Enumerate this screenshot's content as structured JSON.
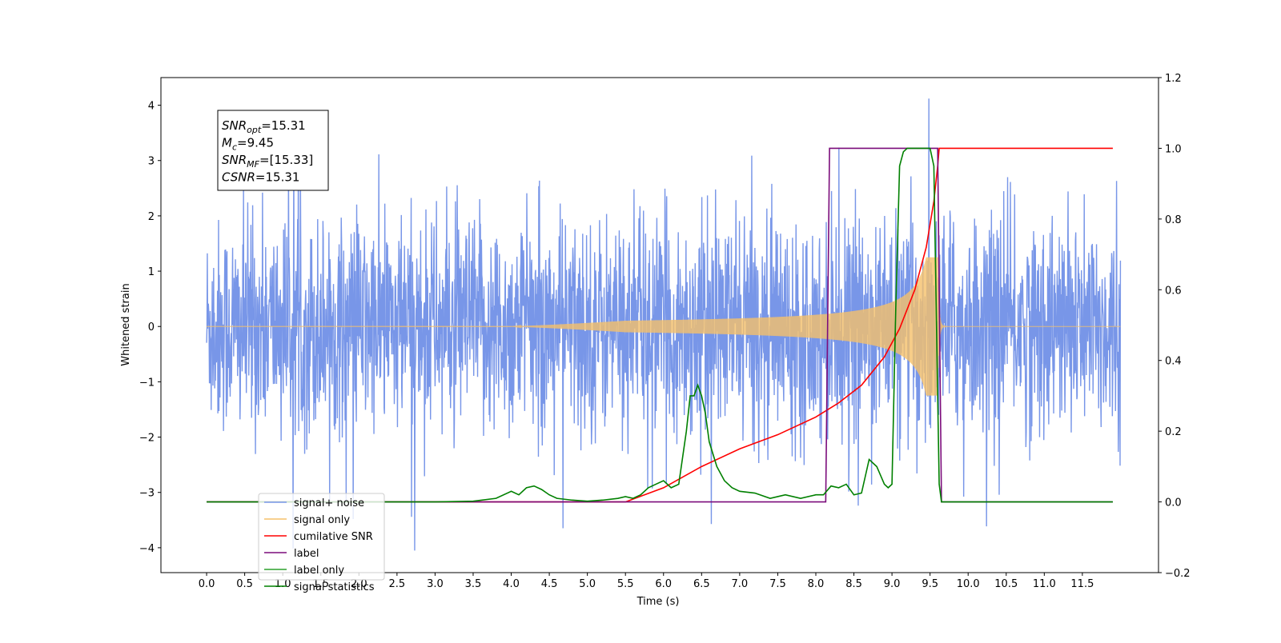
{
  "chart_data": {
    "type": "line",
    "xlabel": "Time (s)",
    "ylabel": "Whitened strain",
    "xlim": [
      -0.6,
      12.5
    ],
    "ylim_left": [
      -4.45,
      4.5
    ],
    "ylim_right": [
      -0.2,
      1.2
    ],
    "x_ticks": [
      "0.0",
      "0.5",
      "1.0",
      "1.5",
      "2.0",
      "2.5",
      "3.0",
      "3.5",
      "4.0",
      "4.5",
      "5.0",
      "5.5",
      "6.0",
      "6.5",
      "7.0",
      "7.5",
      "8.0",
      "8.5",
      "9.0",
      "9.5",
      "10.0",
      "10.5",
      "11.0",
      "11.5"
    ],
    "y_ticks_left": [
      "−4",
      "−3",
      "−2",
      "−1",
      "0",
      "1",
      "2",
      "3",
      "4"
    ],
    "y_ticks_right": [
      "−0.2",
      "0.0",
      "0.2",
      "0.4",
      "0.6",
      "0.8",
      "1.0",
      "1.2"
    ],
    "grid": false,
    "legend_position": "lower-left",
    "annotation": {
      "lines": [
        {
          "base": "SNR",
          "sub": "opt",
          "value": "=15.31"
        },
        {
          "base": "M",
          "sub": "c",
          "value": "=9.45"
        },
        {
          "base": "SNR",
          "sub": "MF",
          "value": "=[15.33]"
        },
        {
          "base": "CSNR",
          "sub": "",
          "value": "=15.31"
        }
      ]
    },
    "series": [
      {
        "name": "signal+ noise",
        "color": "#7896e8",
        "axis": "left",
        "kind": "noise",
        "x_range": [
          0.0,
          12.0
        ],
        "amplitude_range": [
          -4.05,
          4.12
        ],
        "typical_envelope": 2.0
      },
      {
        "name": "signal only",
        "color": "#f5c06a",
        "axis": "left",
        "kind": "chirp",
        "x_range": [
          0.0,
          12.0
        ],
        "peak_time": 9.6,
        "peak_amplitude": 1.25
      },
      {
        "name": "cumilative SNR",
        "color": "#ff0000",
        "axis": "right",
        "x": [
          0.0,
          5.5,
          6.0,
          6.5,
          7.0,
          7.5,
          8.0,
          8.3,
          8.6,
          8.9,
          9.1,
          9.3,
          9.45,
          9.55,
          9.6,
          9.62,
          11.9
        ],
        "y": [
          0.0,
          0.0,
          0.04,
          0.1,
          0.15,
          0.19,
          0.24,
          0.28,
          0.33,
          0.41,
          0.49,
          0.6,
          0.72,
          0.85,
          0.95,
          1.0,
          1.0
        ]
      },
      {
        "name": "label",
        "color": "#7b0c7b",
        "axis": "right",
        "x": [
          0.0,
          8.13,
          8.18,
          9.55,
          9.6,
          9.65,
          11.9
        ],
        "y": [
          0.0,
          0.0,
          1.0,
          1.0,
          1.0,
          0.0,
          0.0
        ]
      },
      {
        "name": "label only",
        "color": "#2ca02c",
        "axis": "right",
        "legend_only": true
      },
      {
        "name": "signal statistics",
        "color": "#008000",
        "axis": "right",
        "x": [
          0.0,
          3.0,
          3.5,
          3.8,
          4.0,
          4.1,
          4.2,
          4.3,
          4.4,
          4.5,
          4.6,
          4.8,
          5.0,
          5.2,
          5.4,
          5.5,
          5.6,
          5.7,
          5.8,
          5.9,
          6.0,
          6.1,
          6.2,
          6.3,
          6.35,
          6.4,
          6.45,
          6.5,
          6.55,
          6.6,
          6.7,
          6.8,
          6.9,
          7.0,
          7.2,
          7.4,
          7.5,
          7.6,
          7.8,
          8.0,
          8.1,
          8.2,
          8.3,
          8.4,
          8.5,
          8.6,
          8.7,
          8.8,
          8.9,
          8.95,
          9.0,
          9.05,
          9.1,
          9.15,
          9.2,
          9.3,
          9.5,
          9.55,
          9.6,
          9.62,
          9.65,
          9.7,
          11.9
        ],
        "y": [
          0.0,
          0.0,
          0.002,
          0.01,
          0.03,
          0.02,
          0.04,
          0.045,
          0.035,
          0.02,
          0.01,
          0.005,
          0.002,
          0.005,
          0.01,
          0.015,
          0.01,
          0.02,
          0.04,
          0.05,
          0.06,
          0.04,
          0.05,
          0.2,
          0.3,
          0.3,
          0.33,
          0.3,
          0.25,
          0.17,
          0.1,
          0.06,
          0.04,
          0.03,
          0.025,
          0.01,
          0.015,
          0.02,
          0.01,
          0.02,
          0.02,
          0.045,
          0.04,
          0.05,
          0.02,
          0.025,
          0.12,
          0.1,
          0.05,
          0.04,
          0.05,
          0.55,
          0.95,
          0.99,
          1.0,
          1.0,
          1.0,
          0.95,
          0.3,
          0.05,
          0.0,
          0.0,
          0.0
        ]
      }
    ]
  }
}
